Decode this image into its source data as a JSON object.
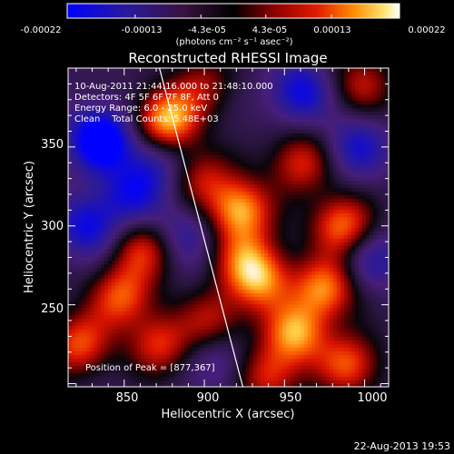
{
  "chart_data": {
    "type": "heatmap",
    "title": "Reconstructed RHESSI Image",
    "xlabel": "Heliocentric X (arcsec)",
    "ylabel": "Heliocentric Y (arcsec)",
    "xlim": [
      815,
      1015
    ],
    "ylim": [
      198,
      400
    ],
    "x_ticks": [
      "850",
      "900",
      "950",
      "1000"
    ],
    "x_tick_values": [
      850,
      900,
      950,
      1000
    ],
    "y_ticks": [
      "250",
      "300",
      "350"
    ],
    "y_tick_values": [
      250,
      300,
      350
    ],
    "colorbar": {
      "range": [
        -0.00022,
        0.00022
      ],
      "tick_labels": [
        "-0.00022",
        "-0.00013",
        "-4.3e-05",
        "4.3e-05",
        "0.00013",
        "0.00022"
      ],
      "tick_values": [
        -0.00022,
        -0.00013,
        -4.3e-05,
        4.3e-05,
        0.00013,
        0.00022
      ],
      "unit_label": "(photons cm⁻² s⁻¹ asec⁻²)"
    },
    "annotations": [
      "10-Aug-2011 21:44:16.000 to 21:48:10.000",
      "Detectors: 4F 5F 6F 7F 8F, Att 0",
      "Energy Range: 6.0 - 25.0 keV",
      "Clean    Total Counts: 5.48E+03",
      "Position of Peak = [877,367]"
    ],
    "peak": [
      877,
      367
    ],
    "limb_line": [
      [
        872,
        400
      ],
      [
        924,
        198
      ]
    ],
    "hot_spots": [
      {
        "x": 877,
        "y": 367,
        "v": 1.0
      },
      {
        "x": 922,
        "y": 310,
        "v": 0.9
      },
      {
        "x": 957,
        "y": 232,
        "v": 0.85
      },
      {
        "x": 935,
        "y": 265,
        "v": 0.75
      },
      {
        "x": 986,
        "y": 300,
        "v": 0.8
      },
      {
        "x": 975,
        "y": 260,
        "v": 0.8
      },
      {
        "x": 822,
        "y": 225,
        "v": 0.7
      },
      {
        "x": 848,
        "y": 255,
        "v": 0.7
      },
      {
        "x": 862,
        "y": 285,
        "v": 0.6
      },
      {
        "x": 872,
        "y": 225,
        "v": 0.6
      },
      {
        "x": 898,
        "y": 330,
        "v": 0.5
      },
      {
        "x": 990,
        "y": 212,
        "v": 0.7
      },
      {
        "x": 940,
        "y": 205,
        "v": 0.6
      },
      {
        "x": 905,
        "y": 240,
        "v": 0.5
      },
      {
        "x": 960,
        "y": 340,
        "v": 0.6
      },
      {
        "x": 998,
        "y": 390,
        "v": 0.5
      },
      {
        "x": 900,
        "y": 390,
        "v": 0.4
      },
      {
        "x": 925,
        "y": 280,
        "v": 0.55
      }
    ],
    "cold_spots": [
      {
        "x": 835,
        "y": 355,
        "v": -0.9
      },
      {
        "x": 828,
        "y": 300,
        "v": -0.6
      },
      {
        "x": 855,
        "y": 320,
        "v": -0.5
      },
      {
        "x": 888,
        "y": 295,
        "v": -0.4
      },
      {
        "x": 960,
        "y": 385,
        "v": -0.6
      },
      {
        "x": 995,
        "y": 350,
        "v": -0.5
      },
      {
        "x": 1005,
        "y": 280,
        "v": -0.4
      },
      {
        "x": 910,
        "y": 215,
        "v": -0.3
      },
      {
        "x": 870,
        "y": 340,
        "v": -0.4
      }
    ]
  },
  "footer": {
    "timestamp": "22-Aug-2013 19:53"
  }
}
